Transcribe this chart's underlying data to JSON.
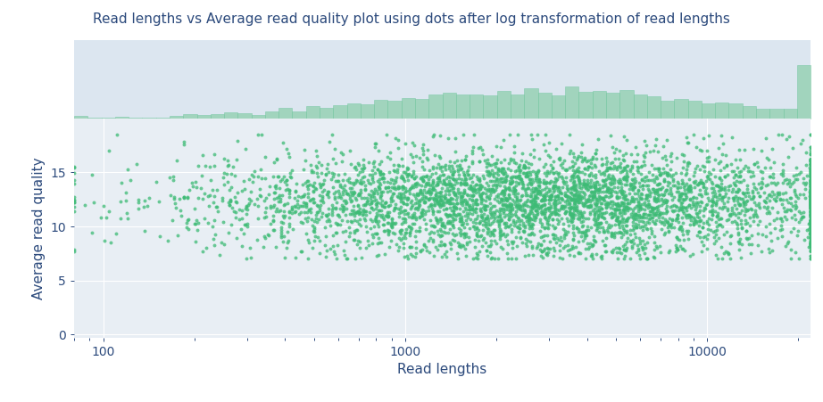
{
  "title": "Read lengths vs Average read quality plot using dots after log transformation of read lengths",
  "xlabel": "Read lengths",
  "ylabel": "Average read quality",
  "dot_color": "#3dbb75",
  "hist_color": "#8ecfac",
  "hist_edge_color": "#6cc49a",
  "bg_color": "#e8eef4",
  "hist_bg_color": "#dce6f0",
  "fig_bg_color": "#ffffff",
  "title_color": "#2c4a7c",
  "label_color": "#2c4a7c",
  "tick_color": "#2c4a7c",
  "grid_color": "#ffffff",
  "xlim_log": [
    80,
    22000
  ],
  "ylim_scatter": [
    -0.3,
    20
  ],
  "ylim_hist": [
    0,
    420
  ],
  "x_ticks": [
    100,
    1000,
    10000
  ],
  "y_ticks": [
    0,
    5,
    10,
    15
  ],
  "dot_size": 8,
  "dot_alpha": 0.75,
  "hist_alpha": 0.75,
  "n_points": 4500,
  "seed": 42,
  "x_log10_mean": 3.45,
  "x_log10_std": 0.55,
  "y_mean": 12.5,
  "y_std": 2.2,
  "hist_bins": 55,
  "title_fontsize": 11,
  "label_fontsize": 11
}
